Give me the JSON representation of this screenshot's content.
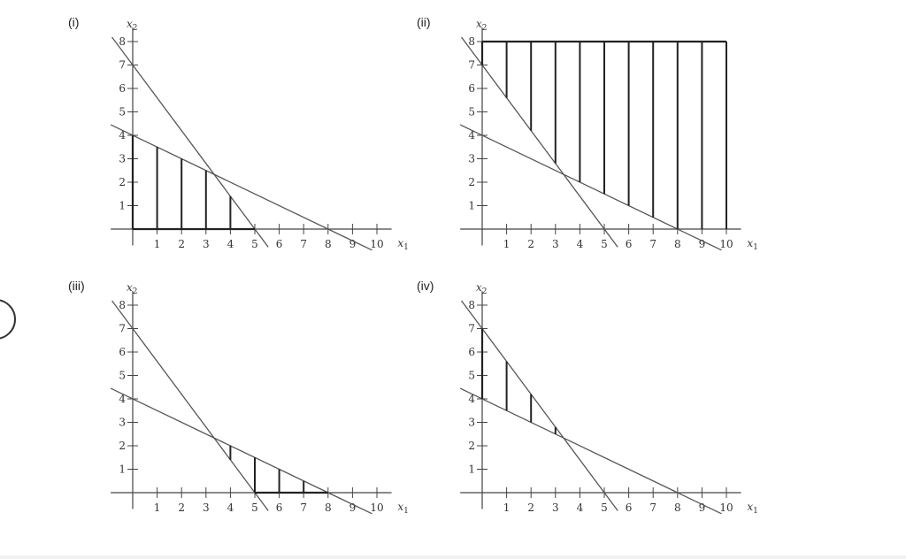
{
  "panels": [
    {
      "label": "(i)",
      "region": "bounded-below-both-lines"
    },
    {
      "label": "(ii)",
      "region": "above-both-lines-up-to-8"
    },
    {
      "label": "(iii)",
      "region": "between-lines-right-of-intersection"
    },
    {
      "label": "(iv)",
      "region": "between-lines-left-of-intersection"
    }
  ],
  "axis": {
    "x_label": "x",
    "x_sub": "1",
    "y_label": "x",
    "y_sub": "2",
    "x_ticks": [
      1,
      2,
      3,
      4,
      5,
      6,
      7,
      8,
      9,
      10
    ],
    "y_ticks": [
      1,
      2,
      3,
      4,
      5,
      6,
      7,
      8
    ],
    "x_tick_labels": [
      "1",
      "2",
      "3",
      "4",
      "5",
      "6",
      "7",
      "8",
      "9",
      "10"
    ],
    "y_tick_labels": [
      "1",
      "2",
      "3",
      "4",
      "5",
      "6",
      "7",
      "8"
    ]
  },
  "lines": [
    {
      "name": "steep",
      "x_intercept": 5,
      "y_intercept": 7
    },
    {
      "name": "shallow",
      "x_intercept": 8,
      "y_intercept": 4
    }
  ],
  "ui": {
    "radio_selected": false
  }
}
